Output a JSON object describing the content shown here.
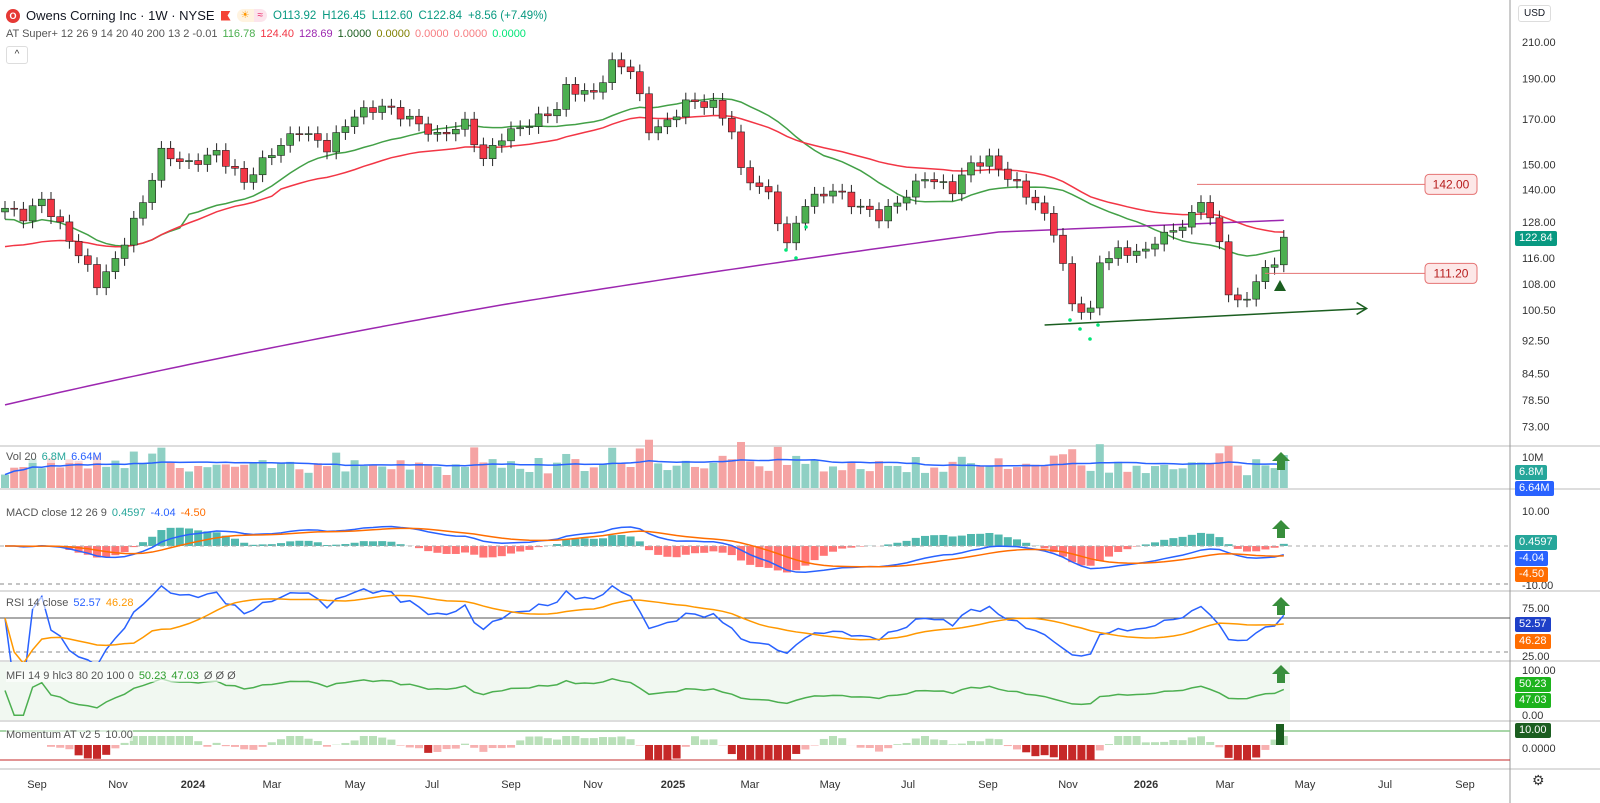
{
  "header": {
    "logo": "O",
    "title": "Owens Corning Inc · 1W · NYSE",
    "open": "O113.92",
    "high": "H126.45",
    "low": "L112.60",
    "close": "C122.84",
    "change": "+8.56 (+7.49%)",
    "pill_left": "☀",
    "pill_right": "≈"
  },
  "indicator": {
    "name": "AT Super+ 12 26 9 14 20 40 200 13 2 -0.01",
    "values": [
      {
        "v": "116.78",
        "c": "#4caf50"
      },
      {
        "v": "124.40",
        "c": "#f23645"
      },
      {
        "v": "128.69",
        "c": "#9c27b0"
      },
      {
        "v": "1.0000",
        "c": "#1b5e20"
      },
      {
        "v": "0.0000",
        "c": "#808000"
      },
      {
        "v": "0.0000",
        "c": "#f77c80"
      },
      {
        "v": "0.0000",
        "c": "#f77c80"
      },
      {
        "v": "0.0000",
        "c": "#00e676"
      }
    ]
  },
  "collapse_icon": "^",
  "currency": "USD",
  "panes": {
    "vol": {
      "label": "Vol 20",
      "v1": "6.8M",
      "v2": "6.64M",
      "axis": "10M"
    },
    "macd": {
      "label": "MACD close 12 26 9",
      "v1": "0.4597",
      "v2": "-4.04",
      "v3": "-4.50",
      "axis_top": "10.00",
      "axis_bot": "-10.00"
    },
    "rsi": {
      "label": "RSI 14 close",
      "v1": "52.57",
      "v2": "46.28",
      "axis_top": "75.00",
      "axis_bot": "25.00"
    },
    "mfi": {
      "label": "MFI 14 9 hlc3 80 20 100 0",
      "v1": "50.23",
      "v2": "47.03",
      "v3": "Ø Ø Ø",
      "axis_top": "100.00",
      "axis_bot": "0.00"
    },
    "mom": {
      "label": "Momentum AT v2 5",
      "v1": "10.00",
      "axis": "0.0000"
    }
  },
  "price_labels": {
    "last": "122.84",
    "level_high": "142.00",
    "level_low": "111.20"
  },
  "chart_data": {
    "type": "candlestick",
    "title": "Owens Corning Inc · 1W · NYSE",
    "scale": "log",
    "ylim": [
      73,
      210
    ],
    "y_ticks": [
      "210.00",
      "190.00",
      "170.00",
      "150.00",
      "140.00",
      "128.00",
      "116.00",
      "108.00",
      "100.50",
      "92.50",
      "84.50",
      "78.50",
      "73.00"
    ],
    "x_ticks": [
      "Sep",
      "Nov",
      "2024",
      "Mar",
      "May",
      "Jul",
      "Sep",
      "Nov",
      "2025",
      "Mar",
      "May",
      "Jul",
      "Sep",
      "Nov",
      "2026",
      "Mar",
      "May",
      "Jul",
      "Sep"
    ],
    "close_anchors_week_price": [
      [
        0,
        133
      ],
      [
        2,
        130
      ],
      [
        4,
        136
      ],
      [
        7,
        122
      ],
      [
        10,
        108
      ],
      [
        12,
        115
      ],
      [
        15,
        135
      ],
      [
        17,
        155
      ],
      [
        20,
        150
      ],
      [
        23,
        155
      ],
      [
        26,
        143
      ],
      [
        29,
        155
      ],
      [
        32,
        165
      ],
      [
        35,
        157
      ],
      [
        38,
        172
      ],
      [
        41,
        176
      ],
      [
        44,
        170
      ],
      [
        47,
        162
      ],
      [
        50,
        168
      ],
      [
        52,
        152
      ],
      [
        54,
        162
      ],
      [
        57,
        168
      ],
      [
        60,
        175
      ],
      [
        61,
        185
      ],
      [
        64,
        182
      ],
      [
        66,
        198
      ],
      [
        68,
        195
      ],
      [
        70,
        165
      ],
      [
        72,
        168
      ],
      [
        74,
        178
      ],
      [
        77,
        177
      ],
      [
        79,
        165
      ],
      [
        80,
        147
      ],
      [
        83,
        138
      ],
      [
        85,
        120
      ],
      [
        87,
        135
      ],
      [
        90,
        140
      ],
      [
        92,
        135
      ],
      [
        95,
        130
      ],
      [
        97,
        135
      ],
      [
        100,
        145
      ],
      [
        103,
        140
      ],
      [
        105,
        150
      ],
      [
        107,
        152
      ],
      [
        109,
        145
      ],
      [
        112,
        135
      ],
      [
        114,
        125
      ],
      [
        116,
        102
      ],
      [
        118,
        100
      ],
      [
        119,
        115
      ],
      [
        121,
        118
      ],
      [
        124,
        118
      ],
      [
        125,
        122
      ],
      [
        127,
        125
      ],
      [
        129,
        130
      ],
      [
        130,
        136
      ],
      [
        131,
        130
      ],
      [
        132,
        120
      ],
      [
        133,
        106
      ],
      [
        134,
        103
      ],
      [
        135,
        103
      ],
      [
        136,
        110
      ],
      [
        138,
        114
      ],
      [
        139,
        122.84
      ]
    ],
    "ma200_anchors_week_price": [
      [
        0,
        77.5
      ],
      [
        54,
        102
      ],
      [
        108,
        124.6
      ],
      [
        139,
        128.7
      ]
    ],
    "horizontal_levels": [
      142.0,
      111.2
    ],
    "trendline": [
      [
        113,
        96.5
      ],
      [
        148,
        101
      ]
    ]
  }
}
